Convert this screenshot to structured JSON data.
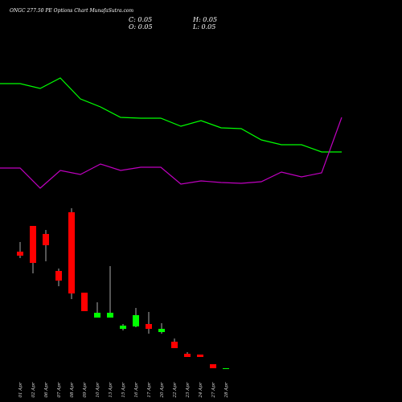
{
  "chart_data": [
    {
      "type": "candlestick",
      "title": "ONGC 277.50 PE Options  Chart MunafaSutra.com",
      "ohlc_labels": [
        "C: 0.05",
        "H: 0.05",
        "O: 0.05",
        "L: 0.05"
      ],
      "categories": [
        "01 Apr",
        "02 Apr",
        "06 Apr",
        "07 Apr",
        "08 Apr",
        "09 Apr",
        "10 Apr",
        "13 Apr",
        "15 Apr",
        "16 Apr",
        "17 Apr",
        "20 Apr",
        "22 Apr",
        "23 Apr",
        "24 Apr",
        "27 Apr",
        "28 Apr"
      ],
      "open": [
        7.3,
        8.9,
        8.4,
        6.1,
        9.75,
        4.75,
        3.2,
        3.2,
        2.5,
        2.65,
        2.8,
        2.3,
        1.7,
        0.95,
        0.9,
        0.3,
        0.05
      ],
      "high": [
        7.9,
        8.9,
        8.65,
        6.25,
        10.0,
        4.75,
        4.15,
        6.4,
        2.8,
        3.8,
        3.55,
        2.85,
        1.9,
        1.05,
        0.9,
        0.3,
        0.05
      ],
      "low": [
        6.9,
        5.95,
        6.7,
        5.15,
        4.35,
        3.6,
        3.2,
        3.2,
        2.4,
        2.6,
        2.2,
        2.2,
        1.3,
        0.75,
        0.75,
        0.05,
        0.05
      ],
      "close": [
        7.05,
        6.6,
        7.7,
        5.5,
        4.7,
        3.6,
        3.5,
        3.5,
        2.7,
        3.35,
        2.5,
        2.5,
        1.3,
        0.75,
        0.75,
        0.05,
        0.05
      ],
      "up_color": "#00ff00",
      "down_color": "#ff0000",
      "ylim": [
        -0.05,
        10.55
      ]
    },
    {
      "type": "line",
      "categories": [
        null,
        null,
        null,
        null,
        null,
        null,
        null,
        null,
        null,
        null,
        null,
        null,
        null,
        null,
        null,
        null,
        null,
        null
      ],
      "series": [
        {
          "color": "#00ff00",
          "values": [
            146,
            146,
            140,
            153,
            127,
            117,
            104,
            103,
            103,
            93,
            100,
            91,
            90,
            76,
            70,
            70,
            61,
            61
          ]
        },
        {
          "color": "#c000c0",
          "values": [
            41,
            41,
            16,
            38,
            33,
            46,
            38,
            42,
            42,
            21,
            25,
            23,
            22,
            24,
            36,
            30,
            35,
            104
          ]
        }
      ],
      "ylim": [
        0,
        250
      ]
    }
  ]
}
